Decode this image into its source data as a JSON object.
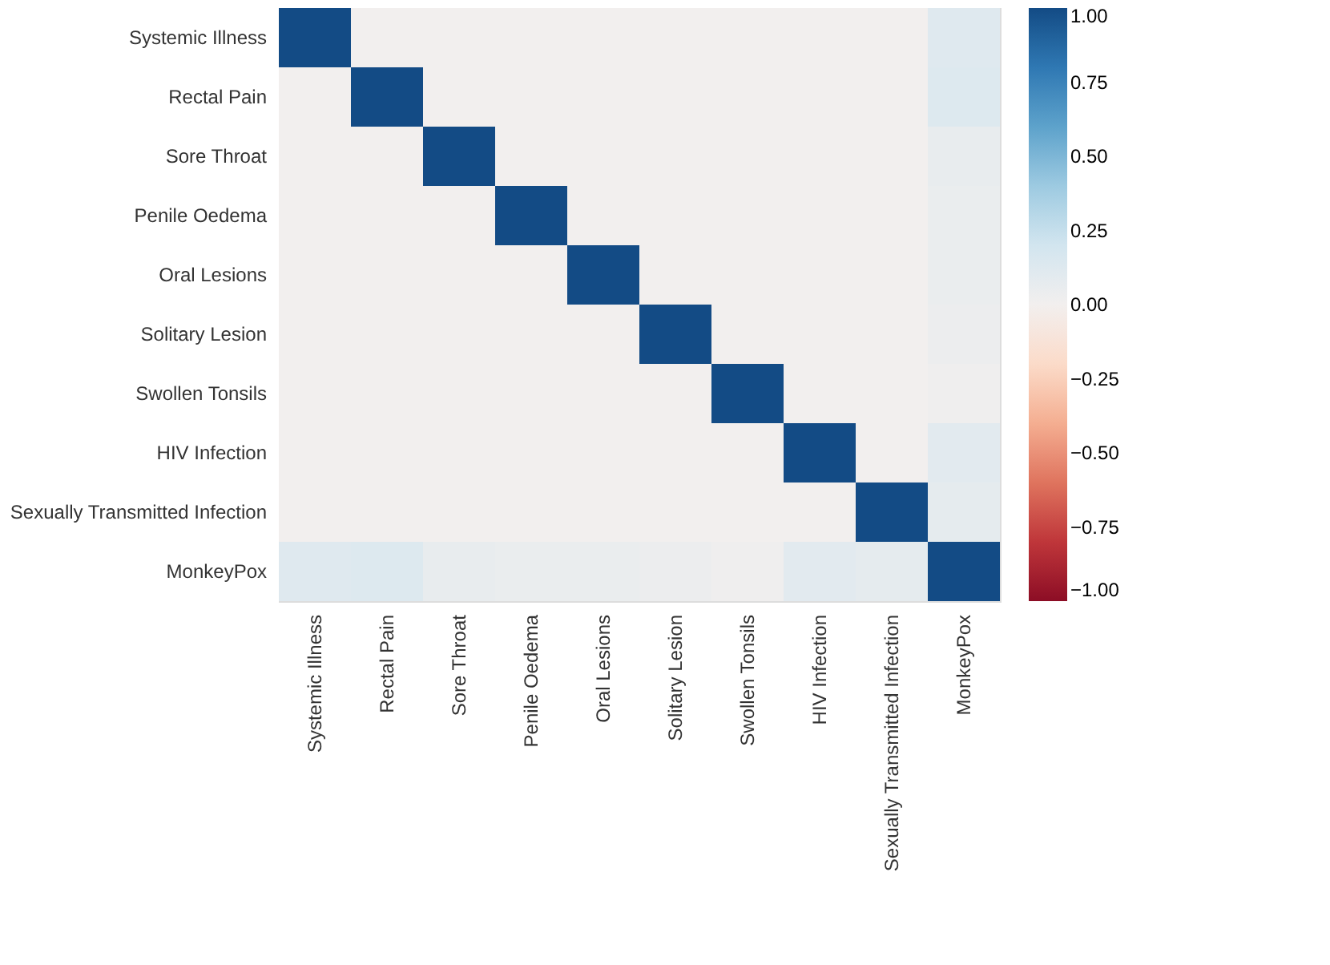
{
  "chart_data": {
    "type": "heatmap",
    "categories": [
      "Systemic Illness",
      "Rectal Pain",
      "Sore Throat",
      "Penile Oedema",
      "Oral Lesions",
      "Solitary Lesion",
      "Swollen Tonsils",
      "HIV Infection",
      "Sexually Transmitted Infection",
      "MonkeyPox"
    ],
    "y_categories": [
      "Systemic Illness",
      "Rectal Pain",
      "Sore Throat",
      "Penile Oedema",
      "Oral Lesions",
      "Solitary Lesion",
      "Swollen Tonsils",
      "HIV Infection",
      "Sexually Transmitted Infection",
      "MonkeyPox"
    ],
    "cells": [
      [
        1,
        0,
        0,
        0,
        0,
        0,
        0,
        0,
        0,
        0.12
      ],
      [
        0,
        1,
        0,
        0,
        0,
        0,
        0,
        0,
        0,
        0.13
      ],
      [
        0,
        0,
        1,
        0,
        0,
        0,
        0,
        0,
        0,
        0.06
      ],
      [
        0,
        0,
        0,
        1,
        0,
        0,
        0,
        0,
        0,
        0.05
      ],
      [
        0,
        0,
        0,
        0,
        1,
        0,
        0,
        0,
        0,
        0.05
      ],
      [
        0,
        0,
        0,
        0,
        0,
        1,
        0,
        0,
        0,
        0.04
      ],
      [
        0,
        0,
        0,
        0,
        0,
        0,
        1,
        0,
        0,
        0.02
      ],
      [
        0,
        0,
        0,
        0,
        0,
        0,
        0,
        1,
        0,
        0.1
      ],
      [
        0,
        0,
        0,
        0,
        0,
        0,
        0,
        0,
        1,
        0.08
      ],
      [
        0.12,
        0.13,
        0.06,
        0.05,
        0.05,
        0.04,
        0.02,
        0.1,
        0.08,
        1
      ]
    ],
    "clim": [
      -1,
      1
    ],
    "cticks": [
      {
        "value": 1,
        "label": "1.00"
      },
      {
        "value": 0.75,
        "label": "0.75"
      },
      {
        "value": 0.5,
        "label": "0.50"
      },
      {
        "value": 0.25,
        "label": "0.25"
      },
      {
        "value": 0,
        "label": "0.00"
      },
      {
        "value": -0.25,
        "label": "−0.25"
      },
      {
        "value": -0.5,
        "label": "−0.50"
      },
      {
        "value": -0.75,
        "label": "−0.75"
      },
      {
        "value": -1,
        "label": "−1.00"
      }
    ]
  }
}
